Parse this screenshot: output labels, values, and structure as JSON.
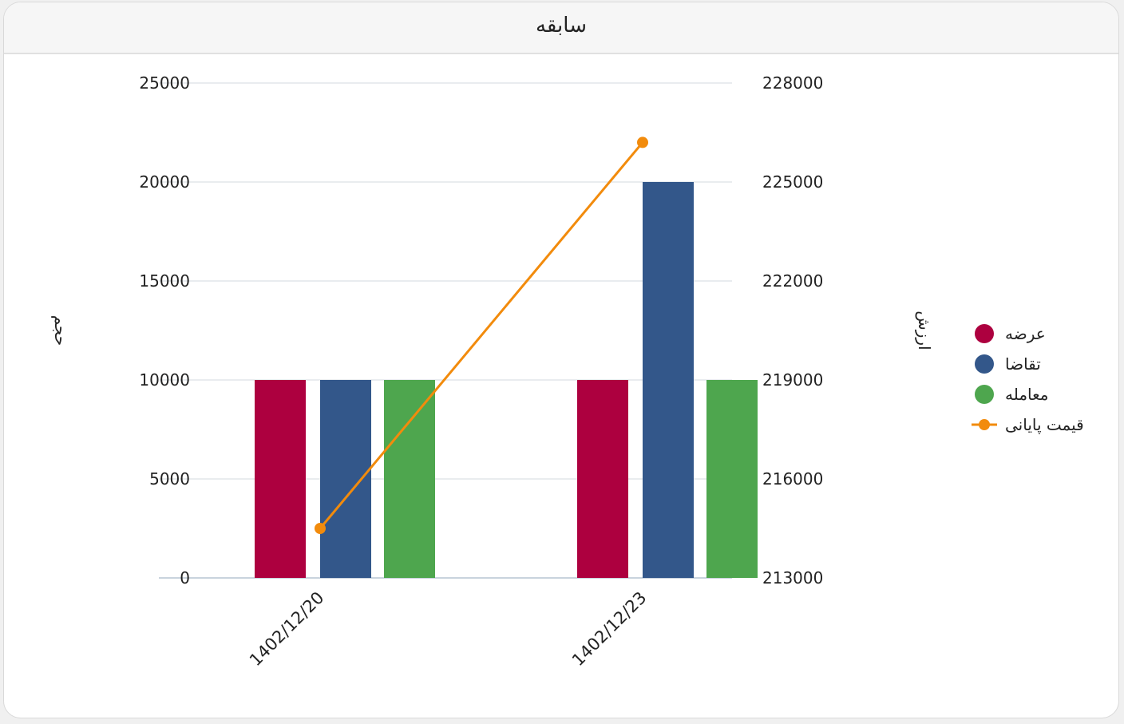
{
  "card": {
    "title": "سابقه"
  },
  "chart_data": {
    "type": "bar",
    "title": "سابقه",
    "categories": [
      "1402/12/20",
      "1402/12/23"
    ],
    "series": [
      {
        "name": "عرضه",
        "type": "bar",
        "axis": "left",
        "color": "#ad003f",
        "values": [
          10000,
          10000
        ]
      },
      {
        "name": "تقاضا",
        "type": "bar",
        "axis": "left",
        "color": "#33578a",
        "values": [
          10000,
          20000
        ]
      },
      {
        "name": "معامله",
        "type": "bar",
        "axis": "left",
        "color": "#4ea64e",
        "values": [
          10000,
          10000
        ]
      },
      {
        "name": "قیمت پایانی",
        "type": "line",
        "axis": "right",
        "color": "#f28b0c",
        "values": [
          214500,
          226200
        ]
      }
    ],
    "left_axis": {
      "label": "حجم",
      "min": 0,
      "max": 25000,
      "ticks": [
        0,
        5000,
        10000,
        15000,
        20000,
        25000
      ]
    },
    "right_axis": {
      "label": "ارزش",
      "min": 213000,
      "max": 228000,
      "ticks": [
        213000,
        216000,
        219000,
        222000,
        225000,
        228000
      ]
    },
    "grid": true,
    "legend": "right"
  }
}
